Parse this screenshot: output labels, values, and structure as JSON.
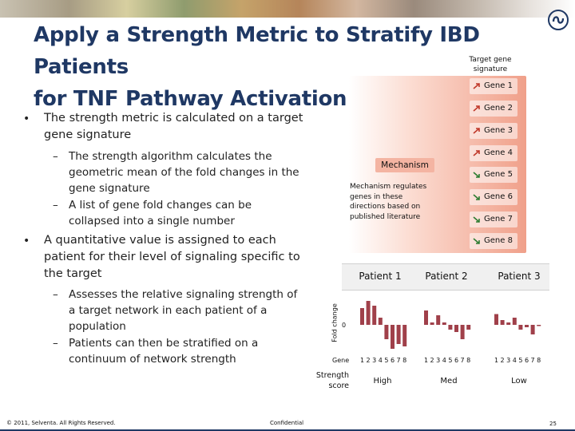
{
  "slide": {
    "title_line1": "Apply a Strength Metric to Stratify IBD Patients",
    "title_line2": "for TNF Pathway Activation",
    "bullets": [
      {
        "text": "The strength metric is calculated on a target gene signature",
        "sub": [
          "The strength algorithm calculates the geometric mean of the fold changes in the gene signature",
          "A list of gene fold changes can be collapsed into a single number"
        ]
      },
      {
        "text": "A quantitative value is assigned to each patient for their level of signaling specific to the target",
        "sub": [
          "Assesses the relative signaling strength of a target network in each patient of a population",
          "Patients can then be stratified on a continuum of network strength"
        ]
      }
    ],
    "bullet_symbol": "•",
    "dash_symbol": "–"
  },
  "diagram": {
    "signature_label": "Target gene signature",
    "mechanism_label": "Mechanism",
    "mechanism_desc": "Mechanism regulates genes in these directions based on published literature",
    "genes": [
      {
        "label": "Gene 1",
        "direction": "up"
      },
      {
        "label": "Gene 2",
        "direction": "up"
      },
      {
        "label": "Gene 3",
        "direction": "up"
      },
      {
        "label": "Gene 4",
        "direction": "up"
      },
      {
        "label": "Gene 5",
        "direction": "down"
      },
      {
        "label": "Gene 6",
        "direction": "down"
      },
      {
        "label": "Gene 7",
        "direction": "down"
      },
      {
        "label": "Gene 8",
        "direction": "down"
      }
    ]
  },
  "chart_data": {
    "type": "bar",
    "title": "",
    "ylabel": "Fold change",
    "y_zero_label": "0",
    "x_prefix": "Gene",
    "categories": [
      "1",
      "2",
      "3",
      "4",
      "5",
      "6",
      "7",
      "8"
    ],
    "ylim": [
      -1.1,
      1.1
    ],
    "bar_color": "#a0404a",
    "series": [
      {
        "name": "Patient 1",
        "values": [
          0.7,
          1.0,
          0.8,
          0.3,
          -0.6,
          -1.0,
          -0.8,
          -0.9
        ],
        "score": "High"
      },
      {
        "name": "Patient 2",
        "values": [
          0.6,
          0.1,
          0.4,
          0.1,
          -0.2,
          -0.3,
          -0.6,
          -0.2
        ],
        "score": "Med"
      },
      {
        "name": "Patient 3",
        "values": [
          0.45,
          0.2,
          0.1,
          0.3,
          -0.2,
          -0.1,
          -0.4,
          -0.05
        ],
        "score": "Low"
      }
    ],
    "strength_label": "Strength score"
  },
  "footer": {
    "copyright": "© 2011, Selventa. All Rights Reserved.",
    "confidential": "Confidential",
    "page": "25"
  },
  "colors": {
    "title": "#1f3864",
    "bar": "#a0404a",
    "up_arrow": "#c0392b",
    "down_arrow": "#2e7d32"
  }
}
